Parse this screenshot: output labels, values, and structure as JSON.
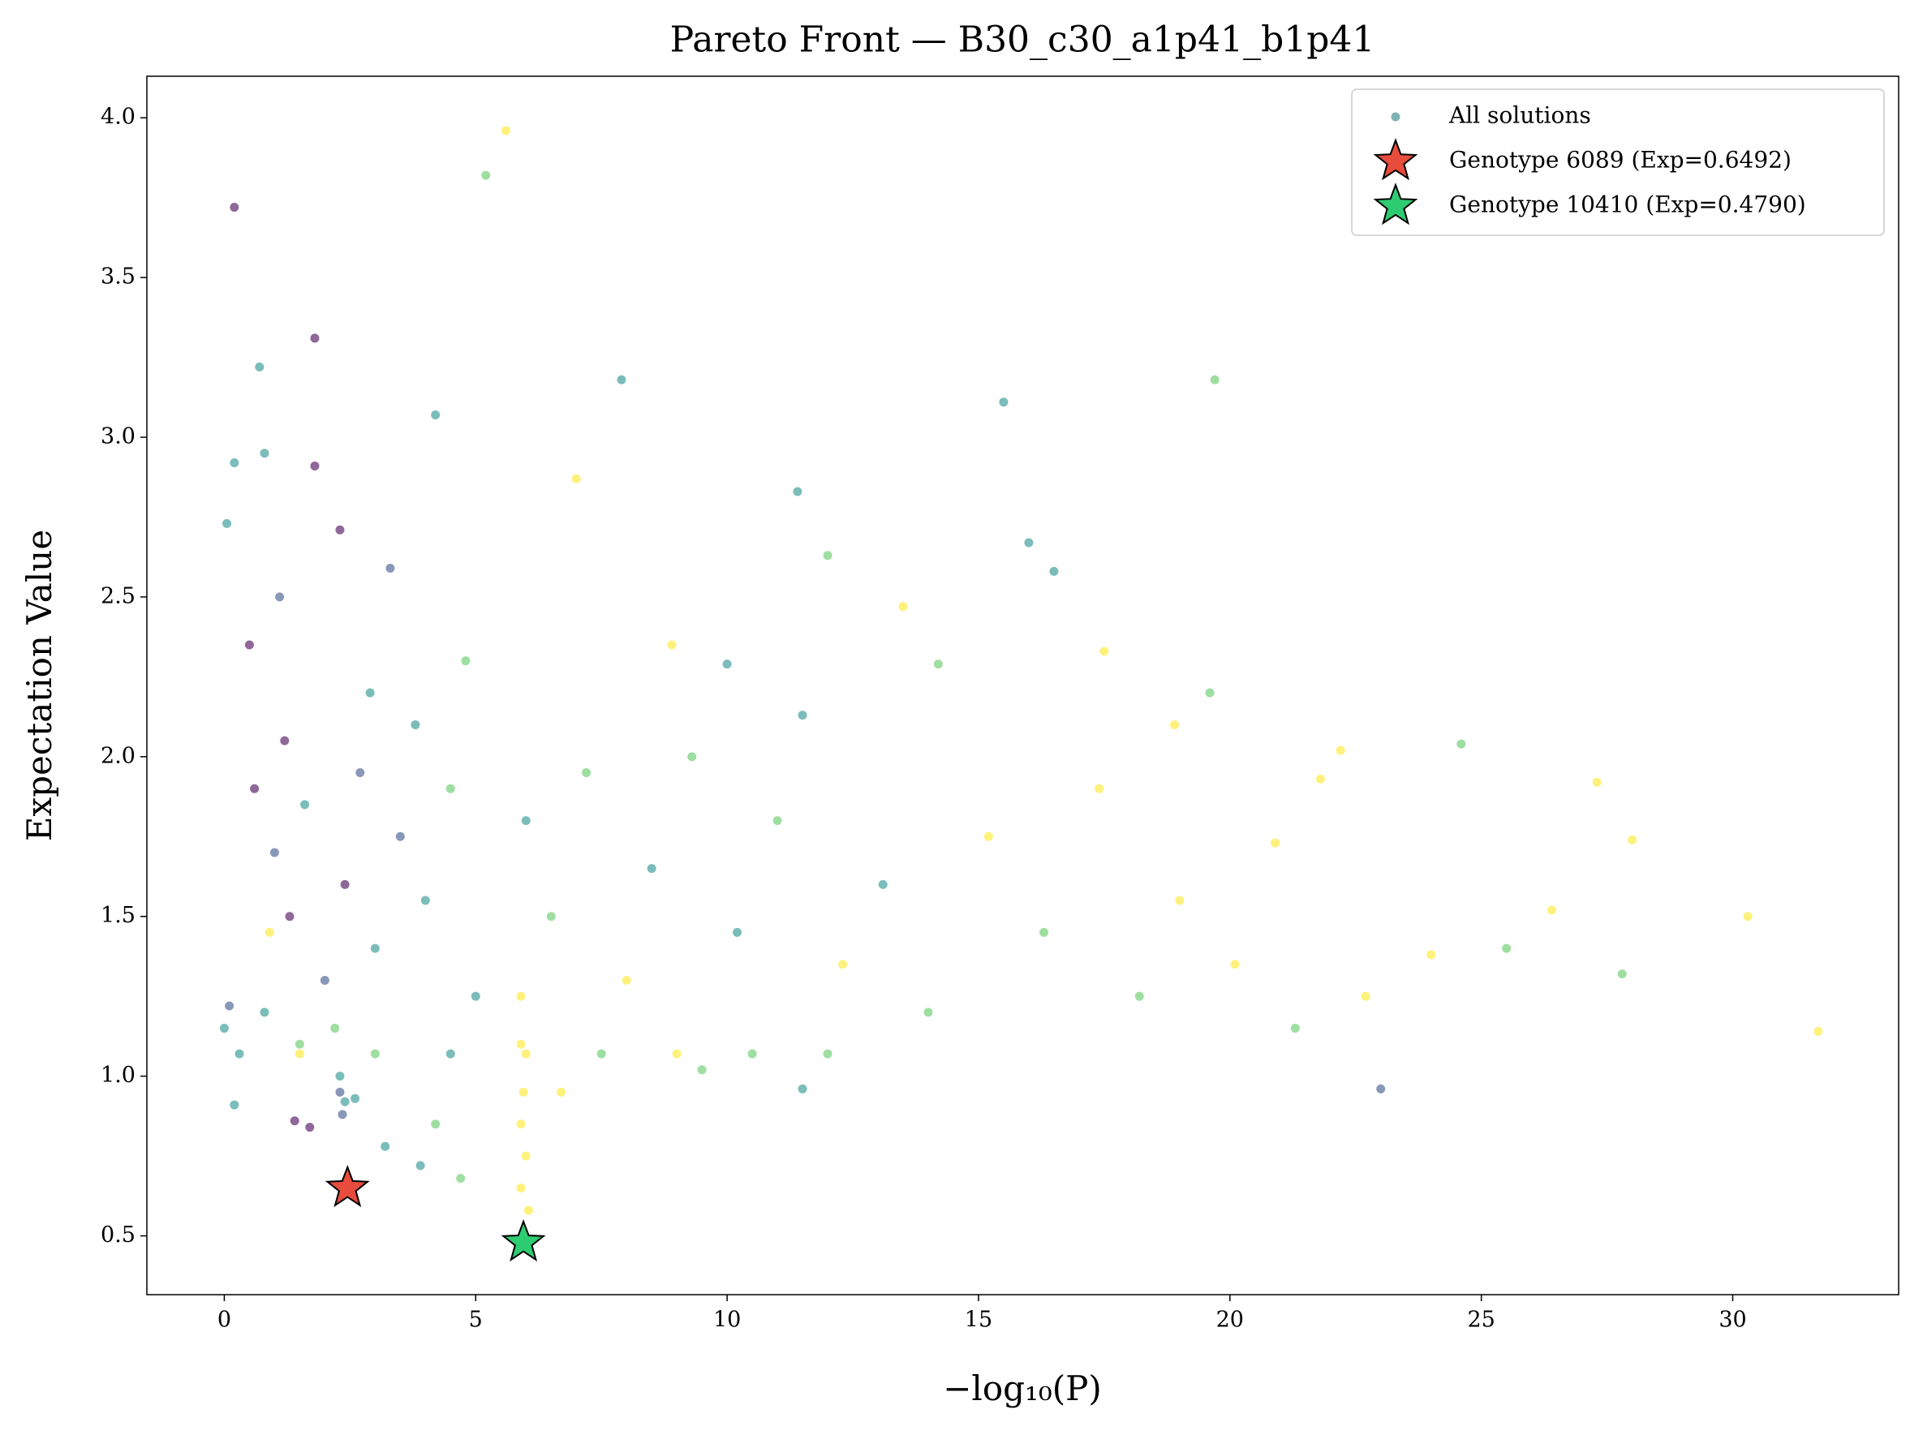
{
  "chart_data": {
    "type": "scatter",
    "title": "Pareto Front — B30_c30_a1p41_b1p41",
    "xlabel": "−log₁₀(P)",
    "ylabel": "Expectation Value",
    "xlim": [
      -1.54,
      33.3
    ],
    "ylim": [
      0.316,
      4.13
    ],
    "xticks": [
      0,
      5,
      10,
      15,
      20,
      25,
      30
    ],
    "yticks": [
      0.5,
      {
        "value": 1,
        "label": "1.0"
      },
      1.5,
      {
        "value": 2,
        "label": "2.0"
      },
      2.5,
      {
        "value": 3,
        "label": "3.0"
      },
      3.5,
      {
        "value": 4,
        "label": "4.0"
      }
    ],
    "legend": "upper right",
    "series": [
      {
        "name": "All solutions",
        "marker": "circle",
        "color": "#7fb3b3",
        "x": [
          0.2,
          5.6,
          5.2,
          1.8,
          0.7,
          0.2,
          0.8,
          1.8,
          4.2,
          7.9,
          15.5,
          19.7,
          11.4,
          7.0,
          0.05,
          2.3,
          3.3,
          12.0,
          16.0,
          16.5,
          30.3,
          31.7,
          27.3,
          28.0,
          23.0,
          24.6,
          25.5,
          26.4,
          27.8,
          22.2,
          20.9,
          18.9,
          19.6,
          21.8,
          17.5,
          14.2,
          13.5,
          10.0,
          0.6,
          1.0,
          1.3,
          1.6,
          2.0,
          2.4,
          0.8,
          1.2,
          2.7,
          3.0,
          3.5,
          4.0,
          4.5,
          5.0,
          1.5,
          0.9,
          2.2,
          3.8,
          6.0,
          6.5,
          7.2,
          8.0,
          8.5,
          9.3,
          10.2,
          11.0,
          12.3,
          13.1,
          14.0,
          15.2,
          16.3,
          17.4,
          18.2,
          19.0,
          20.1,
          21.3,
          22.7,
          24.0,
          0.5,
          1.1,
          2.9,
          4.8,
          8.9,
          11.5,
          0.3,
          1.5,
          3.0,
          4.5,
          6.0,
          7.5,
          9.0,
          10.5,
          12.0,
          0.0,
          0.1,
          2.3,
          2.35,
          2.4,
          2.3,
          2.6,
          1.4,
          1.7,
          0.2,
          5.9,
          5.9,
          5.95,
          5.9,
          6.0,
          5.9,
          6.05,
          3.2,
          3.9,
          4.7,
          6.7,
          11.5,
          9.5,
          4.2
        ],
        "values": [
          3.72,
          3.96,
          3.82,
          3.31,
          3.22,
          2.92,
          2.95,
          2.91,
          3.07,
          3.18,
          3.11,
          3.18,
          2.83,
          2.87,
          2.73,
          2.71,
          2.59,
          2.63,
          2.67,
          2.58,
          1.5,
          1.14,
          1.92,
          1.74,
          0.96,
          2.04,
          1.4,
          1.52,
          1.32,
          2.02,
          1.73,
          2.1,
          2.2,
          1.93,
          2.33,
          2.29,
          2.47,
          2.29,
          1.9,
          1.7,
          1.5,
          1.85,
          1.3,
          1.6,
          1.2,
          2.05,
          1.95,
          1.4,
          1.75,
          1.55,
          1.9,
          1.25,
          1.1,
          1.45,
          1.15,
          2.1,
          1.8,
          1.5,
          1.95,
          1.3,
          1.65,
          2.0,
          1.45,
          1.8,
          1.35,
          1.6,
          1.2,
          1.75,
          1.45,
          1.9,
          1.25,
          1.55,
          1.35,
          1.15,
          1.25,
          1.38,
          2.35,
          2.5,
          2.2,
          2.3,
          2.35,
          2.13,
          1.07,
          1.07,
          1.07,
          1.07,
          1.07,
          1.07,
          1.07,
          1.07,
          1.07,
          1.15,
          1.22,
          0.95,
          0.88,
          0.92,
          1.0,
          0.93,
          0.86,
          0.84,
          0.91,
          1.25,
          1.1,
          0.95,
          0.85,
          0.75,
          0.65,
          0.58,
          0.78,
          0.72,
          0.68,
          0.95,
          0.96,
          1.02,
          0.85
        ],
        "colors": [
          "#440154",
          "#fde725",
          "#5ec962",
          "#440154",
          "#21918c",
          "#21918c",
          "#21918c",
          "#440154",
          "#21918c",
          "#21918c",
          "#21918c",
          "#5ec962",
          "#21918c",
          "#fde725",
          "#21918c",
          "#440154",
          "#3b528b",
          "#5ec962",
          "#21918c",
          "#21918c",
          "#fde725",
          "#fde725",
          "#fde725",
          "#fde725",
          "#3b528b",
          "#5ec962",
          "#5ec962",
          "#fde725",
          "#5ec962",
          "#fde725",
          "#fde725",
          "#fde725",
          "#5ec962",
          "#fde725",
          "#fde725",
          "#5ec962",
          "#fde725",
          "#21918c",
          "#440154",
          "#3b528b",
          "#440154",
          "#21918c",
          "#3b528b",
          "#440154",
          "#21918c",
          "#440154",
          "#3b528b",
          "#21918c",
          "#3b528b",
          "#21918c",
          "#5ec962",
          "#21918c",
          "#5ec962",
          "#fde725",
          "#5ec962",
          "#21918c",
          "#21918c",
          "#5ec962",
          "#5ec962",
          "#fde725",
          "#21918c",
          "#5ec962",
          "#21918c",
          "#5ec962",
          "#fde725",
          "#21918c",
          "#5ec962",
          "#fde725",
          "#5ec962",
          "#fde725",
          "#5ec962",
          "#fde725",
          "#fde725",
          "#5ec962",
          "#fde725",
          "#fde725",
          "#440154",
          "#3b528b",
          "#21918c",
          "#5ec962",
          "#fde725",
          "#21918c",
          "#21918c",
          "#fde725",
          "#5ec962",
          "#21918c",
          "#fde725",
          "#5ec962",
          "#fde725",
          "#5ec962",
          "#5ec962",
          "#21918c",
          "#3b528b",
          "#3b528b",
          "#3b528b",
          "#21918c",
          "#21918c",
          "#21918c",
          "#440154",
          "#440154",
          "#21918c",
          "#fde725",
          "#fde725",
          "#fde725",
          "#fde725",
          "#fde725",
          "#fde725",
          "#fde725",
          "#21918c",
          "#21918c",
          "#5ec962",
          "#fde725",
          "#21918c",
          "#5ec962",
          "#5ec962"
        ]
      },
      {
        "name": "Genotype 6089 (Exp=0.6492)",
        "marker": "star",
        "color": "#e74c3c",
        "x": [
          2.45
        ],
        "values": [
          0.6492
        ]
      },
      {
        "name": "Genotype 10410 (Exp=0.4790)",
        "marker": "star",
        "color": "#2ecc71",
        "x": [
          5.95
        ],
        "values": [
          0.479
        ]
      }
    ]
  }
}
